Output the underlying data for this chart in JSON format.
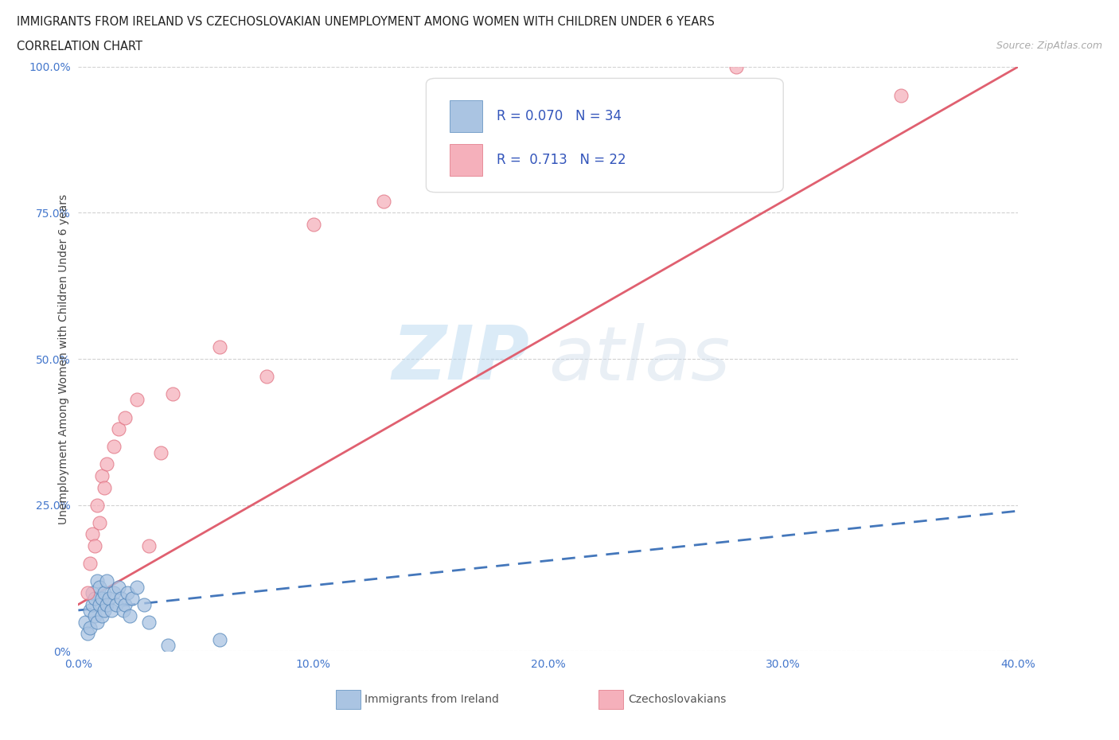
{
  "title": "IMMIGRANTS FROM IRELAND VS CZECHOSLOVAKIAN UNEMPLOYMENT AMONG WOMEN WITH CHILDREN UNDER 6 YEARS",
  "subtitle": "CORRELATION CHART",
  "source": "Source: ZipAtlas.com",
  "ylabel": "Unemployment Among Women with Children Under 6 years",
  "xlim": [
    0.0,
    0.4
  ],
  "ylim": [
    0.0,
    1.0
  ],
  "xticks": [
    0.0,
    0.1,
    0.2,
    0.3,
    0.4
  ],
  "xtick_labels": [
    "0.0%",
    "10.0%",
    "20.0%",
    "30.0%",
    "40.0%"
  ],
  "yticks": [
    0.0,
    0.25,
    0.5,
    0.75,
    1.0
  ],
  "ytick_labels": [
    "0%",
    "25.0%",
    "50.0%",
    "75.0%",
    "100.0%"
  ],
  "blue_color": "#aac4e2",
  "blue_edge_color": "#5588bb",
  "blue_line_color": "#4477bb",
  "pink_color": "#f5b0bb",
  "pink_edge_color": "#e07080",
  "pink_line_color": "#e06070",
  "legend_text_color": "#3355bb",
  "tick_color": "#4477cc",
  "R_blue": 0.07,
  "N_blue": 34,
  "R_pink": 0.713,
  "N_pink": 22,
  "blue_scatter_x": [
    0.003,
    0.004,
    0.005,
    0.005,
    0.006,
    0.006,
    0.007,
    0.007,
    0.008,
    0.008,
    0.009,
    0.009,
    0.01,
    0.01,
    0.011,
    0.011,
    0.012,
    0.012,
    0.013,
    0.014,
    0.015,
    0.016,
    0.017,
    0.018,
    0.019,
    0.02,
    0.021,
    0.022,
    0.023,
    0.025,
    0.028,
    0.03,
    0.038,
    0.06
  ],
  "blue_scatter_y": [
    0.05,
    0.03,
    0.04,
    0.07,
    0.08,
    0.1,
    0.06,
    0.09,
    0.05,
    0.12,
    0.08,
    0.11,
    0.06,
    0.09,
    0.07,
    0.1,
    0.08,
    0.12,
    0.09,
    0.07,
    0.1,
    0.08,
    0.11,
    0.09,
    0.07,
    0.08,
    0.1,
    0.06,
    0.09,
    0.11,
    0.08,
    0.05,
    0.01,
    0.02
  ],
  "pink_scatter_x": [
    0.004,
    0.005,
    0.006,
    0.007,
    0.008,
    0.009,
    0.01,
    0.011,
    0.012,
    0.015,
    0.017,
    0.02,
    0.025,
    0.03,
    0.035,
    0.04,
    0.06,
    0.08,
    0.1,
    0.13,
    0.28,
    0.35
  ],
  "pink_scatter_y": [
    0.1,
    0.15,
    0.2,
    0.18,
    0.25,
    0.22,
    0.3,
    0.28,
    0.32,
    0.35,
    0.38,
    0.4,
    0.43,
    0.18,
    0.34,
    0.44,
    0.52,
    0.47,
    0.73,
    0.77,
    1.0,
    0.95
  ],
  "watermark_zip": "ZIP",
  "watermark_atlas": "atlas",
  "bg_color": "#ffffff",
  "grid_color": "#cccccc"
}
